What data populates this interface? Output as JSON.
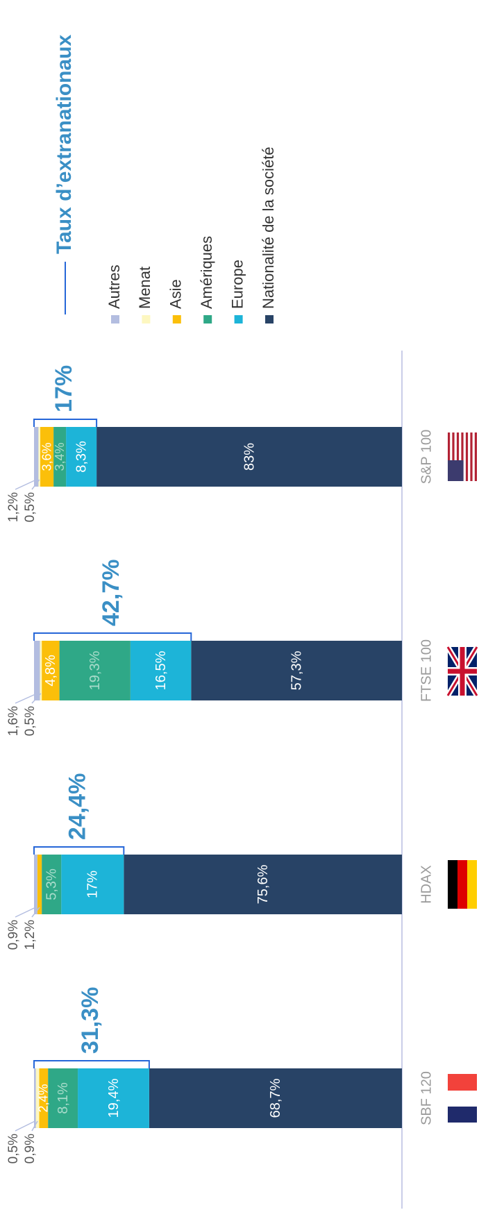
{
  "chart_data": {
    "type": "bar",
    "stacked": true,
    "title": "Taux d’extranationaux",
    "categories": [
      "SBF 120",
      "HDAX",
      "FTSE 100",
      "S&P 100"
    ],
    "ylim": [
      0,
      100
    ],
    "series": [
      {
        "name": "Autres",
        "color": "#b3bde0",
        "values": [
          0.5,
          0.9,
          1.6,
          1.2
        ],
        "value_labels": [
          "0,5%",
          "0,9%",
          "1,6%",
          "1,2%"
        ]
      },
      {
        "name": "Menat",
        "color": "#fdf7c0",
        "values": [
          0.9,
          null,
          0.5,
          0.5
        ],
        "value_labels": [
          "0,9%",
          null,
          "0,5%",
          "0,5%"
        ]
      },
      {
        "name": "Asie",
        "color": "#fbbf0a",
        "values": [
          2.4,
          1.2,
          4.8,
          3.6
        ],
        "value_labels": [
          "2,4%",
          "1,2%",
          "4,8%",
          "3,6%"
        ]
      },
      {
        "name": "Amériques",
        "color": "#2fa887",
        "values": [
          8.1,
          5.3,
          19.3,
          3.4
        ],
        "value_labels": [
          "8,1%",
          "5,3%",
          "19,3%",
          "3,4%"
        ]
      },
      {
        "name": "Europe",
        "color": "#1db4d8",
        "values": [
          19.4,
          17,
          16.5,
          8.3
        ],
        "value_labels": [
          "19,4%",
          "17%",
          "16,5%",
          "8,3%"
        ]
      },
      {
        "name": "Nationalité de la société",
        "color": "#284366",
        "values": [
          68.7,
          75.6,
          57.3,
          83
        ],
        "value_labels": [
          "68,7%",
          "75,6%",
          "57,3%",
          "83%"
        ]
      }
    ],
    "totals": {
      "values": [
        31.3,
        24.4,
        42.7,
        17
      ],
      "value_labels": [
        "31,3%",
        "24,4%",
        "42,7%",
        "17%"
      ]
    }
  }
}
